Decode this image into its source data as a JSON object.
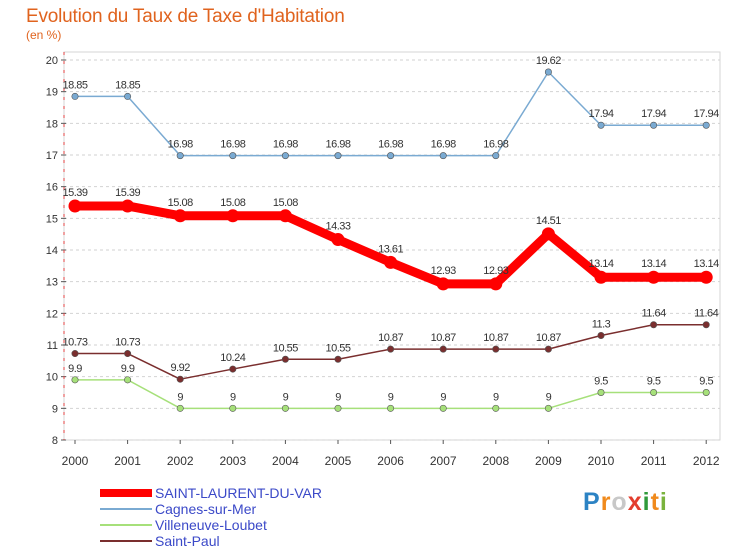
{
  "header": {
    "title": "Evolution du Taux de Taxe d'Habitation",
    "subtitle": "(en %)"
  },
  "logo": {
    "letters": [
      "P",
      "r",
      "o",
      "x",
      "i",
      "t",
      "i"
    ],
    "colors": [
      "#2c83c4",
      "#f08a1c",
      "#c8c8c8",
      "#e33d2d",
      "#2f9a3a",
      "#f08a1c",
      "#7ab33d"
    ]
  },
  "chart_data": {
    "type": "line",
    "title": "Evolution du Taux de Taxe d'Habitation",
    "subtitle": "(en %)",
    "xlabel": "",
    "ylabel": "",
    "x": [
      "2000",
      "2001",
      "2002",
      "2003",
      "2004",
      "2005",
      "2006",
      "2007",
      "2008",
      "2009",
      "2010",
      "2011",
      "2012"
    ],
    "ylim": [
      8,
      20
    ],
    "yticks": [
      "8",
      "9",
      "10",
      "11",
      "12",
      "13",
      "14",
      "15",
      "16",
      "17",
      "18",
      "19",
      "20"
    ],
    "grid": "horizontal dashed",
    "legend_position": "bottom-left",
    "series": [
      {
        "name": "SAINT-LAURENT-DU-VAR",
        "color": "#ff0000",
        "values": [
          15.39,
          15.39,
          15.08,
          15.08,
          15.08,
          14.33,
          13.61,
          12.93,
          12.93,
          14.51,
          13.14,
          13.14,
          13.14
        ],
        "labels": [
          "15.39",
          "15.39",
          "15.08",
          "15.08",
          "15.08",
          "14.33",
          "13.61",
          "12.93",
          "12.93",
          "14.51",
          "13.14",
          "13.14",
          "13.14"
        ]
      },
      {
        "name": "Cagnes-sur-Mer",
        "color": "#7aaad2",
        "values": [
          18.85,
          18.85,
          16.98,
          16.98,
          16.98,
          16.98,
          16.98,
          16.98,
          16.98,
          19.62,
          17.94,
          17.94,
          17.94
        ],
        "labels": [
          "18.85",
          "18.85",
          "16.98",
          "16.98",
          "16.98",
          "16.98",
          "16.98",
          "16.98",
          "16.98",
          "19.62",
          "17.94",
          "17.94",
          "17.94"
        ]
      },
      {
        "name": "Villeneuve-Loubet",
        "color": "#a6e07a",
        "values": [
          9.9,
          9.9,
          9,
          9,
          9,
          9,
          9,
          9,
          9,
          9,
          9.5,
          9.5,
          9.5
        ],
        "labels": [
          "9.9",
          "9.9",
          "9",
          "9",
          "9",
          "9",
          "9",
          "9",
          "9",
          "9",
          "9.5",
          "9.5",
          "9.5"
        ]
      },
      {
        "name": "Saint-Paul",
        "color": "#7a2e2e",
        "values": [
          10.73,
          10.73,
          9.92,
          10.24,
          10.55,
          10.55,
          10.87,
          10.87,
          10.87,
          10.87,
          11.3,
          11.64,
          11.64
        ],
        "labels": [
          "10.73",
          "10.73",
          "9.92",
          "10.24",
          "10.55",
          "10.55",
          "10.87",
          "10.87",
          "10.87",
          "10.87",
          "11.3",
          "11.64",
          "11.64"
        ]
      }
    ]
  }
}
